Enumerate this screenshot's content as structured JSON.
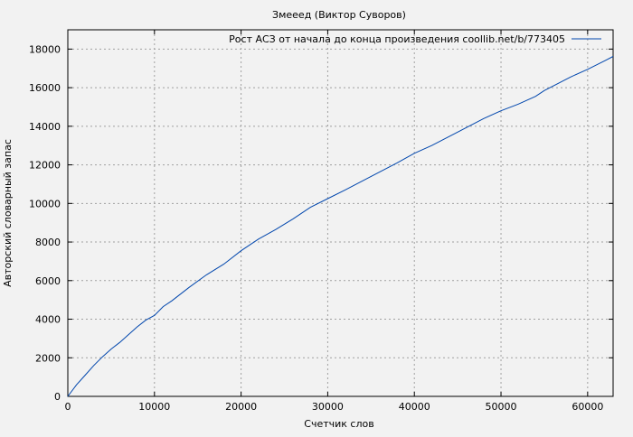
{
  "chart_data": {
    "type": "line",
    "title": "Змееед (Виктор Суворов)",
    "xlabel": "Счетчик слов",
    "ylabel": "Авторский словарный запас",
    "xlim": [
      0,
      62940
    ],
    "ylim": [
      0,
      19000
    ],
    "xticks": [
      0,
      10000,
      20000,
      30000,
      40000,
      50000,
      60000
    ],
    "yticks": [
      0,
      2000,
      4000,
      6000,
      8000,
      10000,
      12000,
      14000,
      16000,
      18000
    ],
    "grid": true,
    "legend_position": "top-right",
    "series": [
      {
        "name": "Рост АСЗ от начала до конца произведения coollib.net/b/773405",
        "color": "#0046ad",
        "x": [
          0,
          1000,
          2000,
          3000,
          4000,
          5000,
          6000,
          7000,
          8000,
          9000,
          10000,
          11000,
          12000,
          14000,
          16000,
          18000,
          20000,
          22000,
          24000,
          26000,
          28000,
          30000,
          32000,
          35000,
          38000,
          40000,
          42000,
          45000,
          48000,
          50000,
          52000,
          54000,
          55000,
          58000,
          60000,
          62000,
          62940
        ],
        "y": [
          0,
          600,
          1100,
          1600,
          2050,
          2450,
          2800,
          3200,
          3600,
          3950,
          4200,
          4650,
          4950,
          5650,
          6300,
          6850,
          7550,
          8150,
          8650,
          9200,
          9800,
          10250,
          10700,
          11400,
          12100,
          12600,
          13000,
          13700,
          14400,
          14800,
          15150,
          15550,
          15850,
          16550,
          16950,
          17400,
          17620
        ]
      }
    ]
  }
}
